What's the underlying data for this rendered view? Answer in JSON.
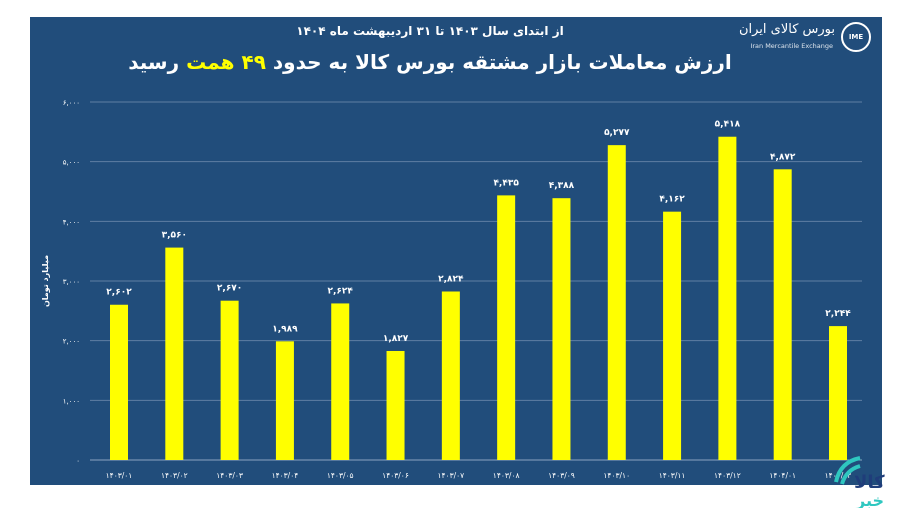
{
  "header": {
    "subtitle": "از ابتدای سال ۱۴۰۳ تا ۳۱ اردیبهشت ماه ۱۴۰۴",
    "title_before": "ارزش معاملات بازار مشتقه بورس کالا به حدود ",
    "title_highlight": "۴۹ همت",
    "title_after": " رسید",
    "logo_fa": "بورس کالای ایران",
    "logo_en": "Iran Mercantile Exchange",
    "logo_mark": "IME",
    "watermark": "کالا خبر"
  },
  "colors": {
    "background": "#214d7b",
    "bar": "#ffff00",
    "text": "#ffffff",
    "grid": "#5f7fa3",
    "highlight": "#ffff00"
  },
  "chart_data": {
    "type": "bar",
    "title": "ارزش معاملات بازار مشتقه بورس کالا به حدود ۴۹ همت رسید",
    "subtitle": "از ابتدای سال ۱۴۰۳ تا ۳۱ اردیبهشت ماه ۱۴۰۴",
    "xlabel": "",
    "ylabel": "میلیارد تومان",
    "ylim": [
      0,
      6000
    ],
    "yticks": [
      0,
      1000,
      2000,
      3000,
      4000,
      5000,
      6000
    ],
    "ytick_labels": [
      "۰",
      "۱,۰۰۰",
      "۲,۰۰۰",
      "۳,۰۰۰",
      "۴,۰۰۰",
      "۵,۰۰۰",
      "۶,۰۰۰"
    ],
    "grid": true,
    "categories": [
      "۱۴۰۳/۰۱",
      "۱۴۰۳/۰۲",
      "۱۴۰۳/۰۳",
      "۱۴۰۳/۰۴",
      "۱۴۰۳/۰۵",
      "۱۴۰۳/۰۶",
      "۱۴۰۳/۰۷",
      "۱۴۰۳/۰۸",
      "۱۴۰۳/۰۹",
      "۱۴۰۳/۱۰",
      "۱۴۰۳/۱۱",
      "۱۴۰۳/۱۲",
      "۱۴۰۴/۰۱",
      "۱۴۰۴/۰۲"
    ],
    "values": [
      2602,
      3560,
      2670,
      1989,
      2624,
      1827,
      2824,
      4435,
      4388,
      5277,
      4162,
      5418,
      4872,
      2244
    ],
    "value_labels": [
      "۲,۶۰۲",
      "۳,۵۶۰",
      "۲,۶۷۰",
      "۱,۹۸۹",
      "۲,۶۲۴",
      "۱,۸۲۷",
      "۲,۸۲۴",
      "۴,۴۳۵",
      "۴,۳۸۸",
      "۵,۲۷۷",
      "۴,۱۶۲",
      "۵,۴۱۸",
      "۴,۸۷۲",
      "۲,۲۴۴"
    ]
  }
}
